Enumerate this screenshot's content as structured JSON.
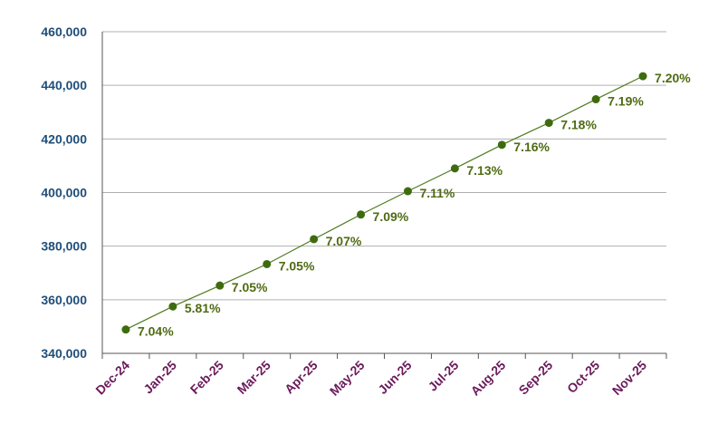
{
  "chart_data": {
    "type": "line",
    "categories": [
      "Dec-24",
      "Jan-25",
      "Feb-25",
      "Mar-25",
      "Apr-25",
      "May-25",
      "Jun-25",
      "Jul-25",
      "Aug-25",
      "Sep-25",
      "Oct-25",
      "Nov-25"
    ],
    "series": [
      {
        "values": [
          348900,
          357500,
          365300,
          373300,
          382600,
          391800,
          400500,
          409000,
          417800,
          426000,
          434800,
          443400
        ],
        "data_labels": [
          "7.04%",
          "5.81%",
          "7.05%",
          "7.05%",
          "7.07%",
          "7.09%",
          "7.11%",
          "7.13%",
          "7.16%",
          "7.18%",
          "7.19%",
          "7.20%"
        ]
      }
    ],
    "y_ticks": [
      "340,000",
      "360,000",
      "380,000",
      "400,000",
      "420,000",
      "440,000",
      "460,000"
    ],
    "y_tick_values": [
      340000,
      360000,
      380000,
      400000,
      420000,
      440000,
      460000
    ],
    "ylim": [
      340000,
      460000
    ],
    "title": "",
    "xlabel": "",
    "ylabel": "",
    "grid": "horizontal",
    "legend": "none",
    "colors": {
      "line": "#4f7a1e",
      "marker": "#3f6b0f",
      "data_label": "#4f6b12",
      "y_tick": "#1f4e79",
      "x_tick": "#6b1a5b",
      "grid": "#b0b0b0",
      "axis": "#555555"
    }
  }
}
